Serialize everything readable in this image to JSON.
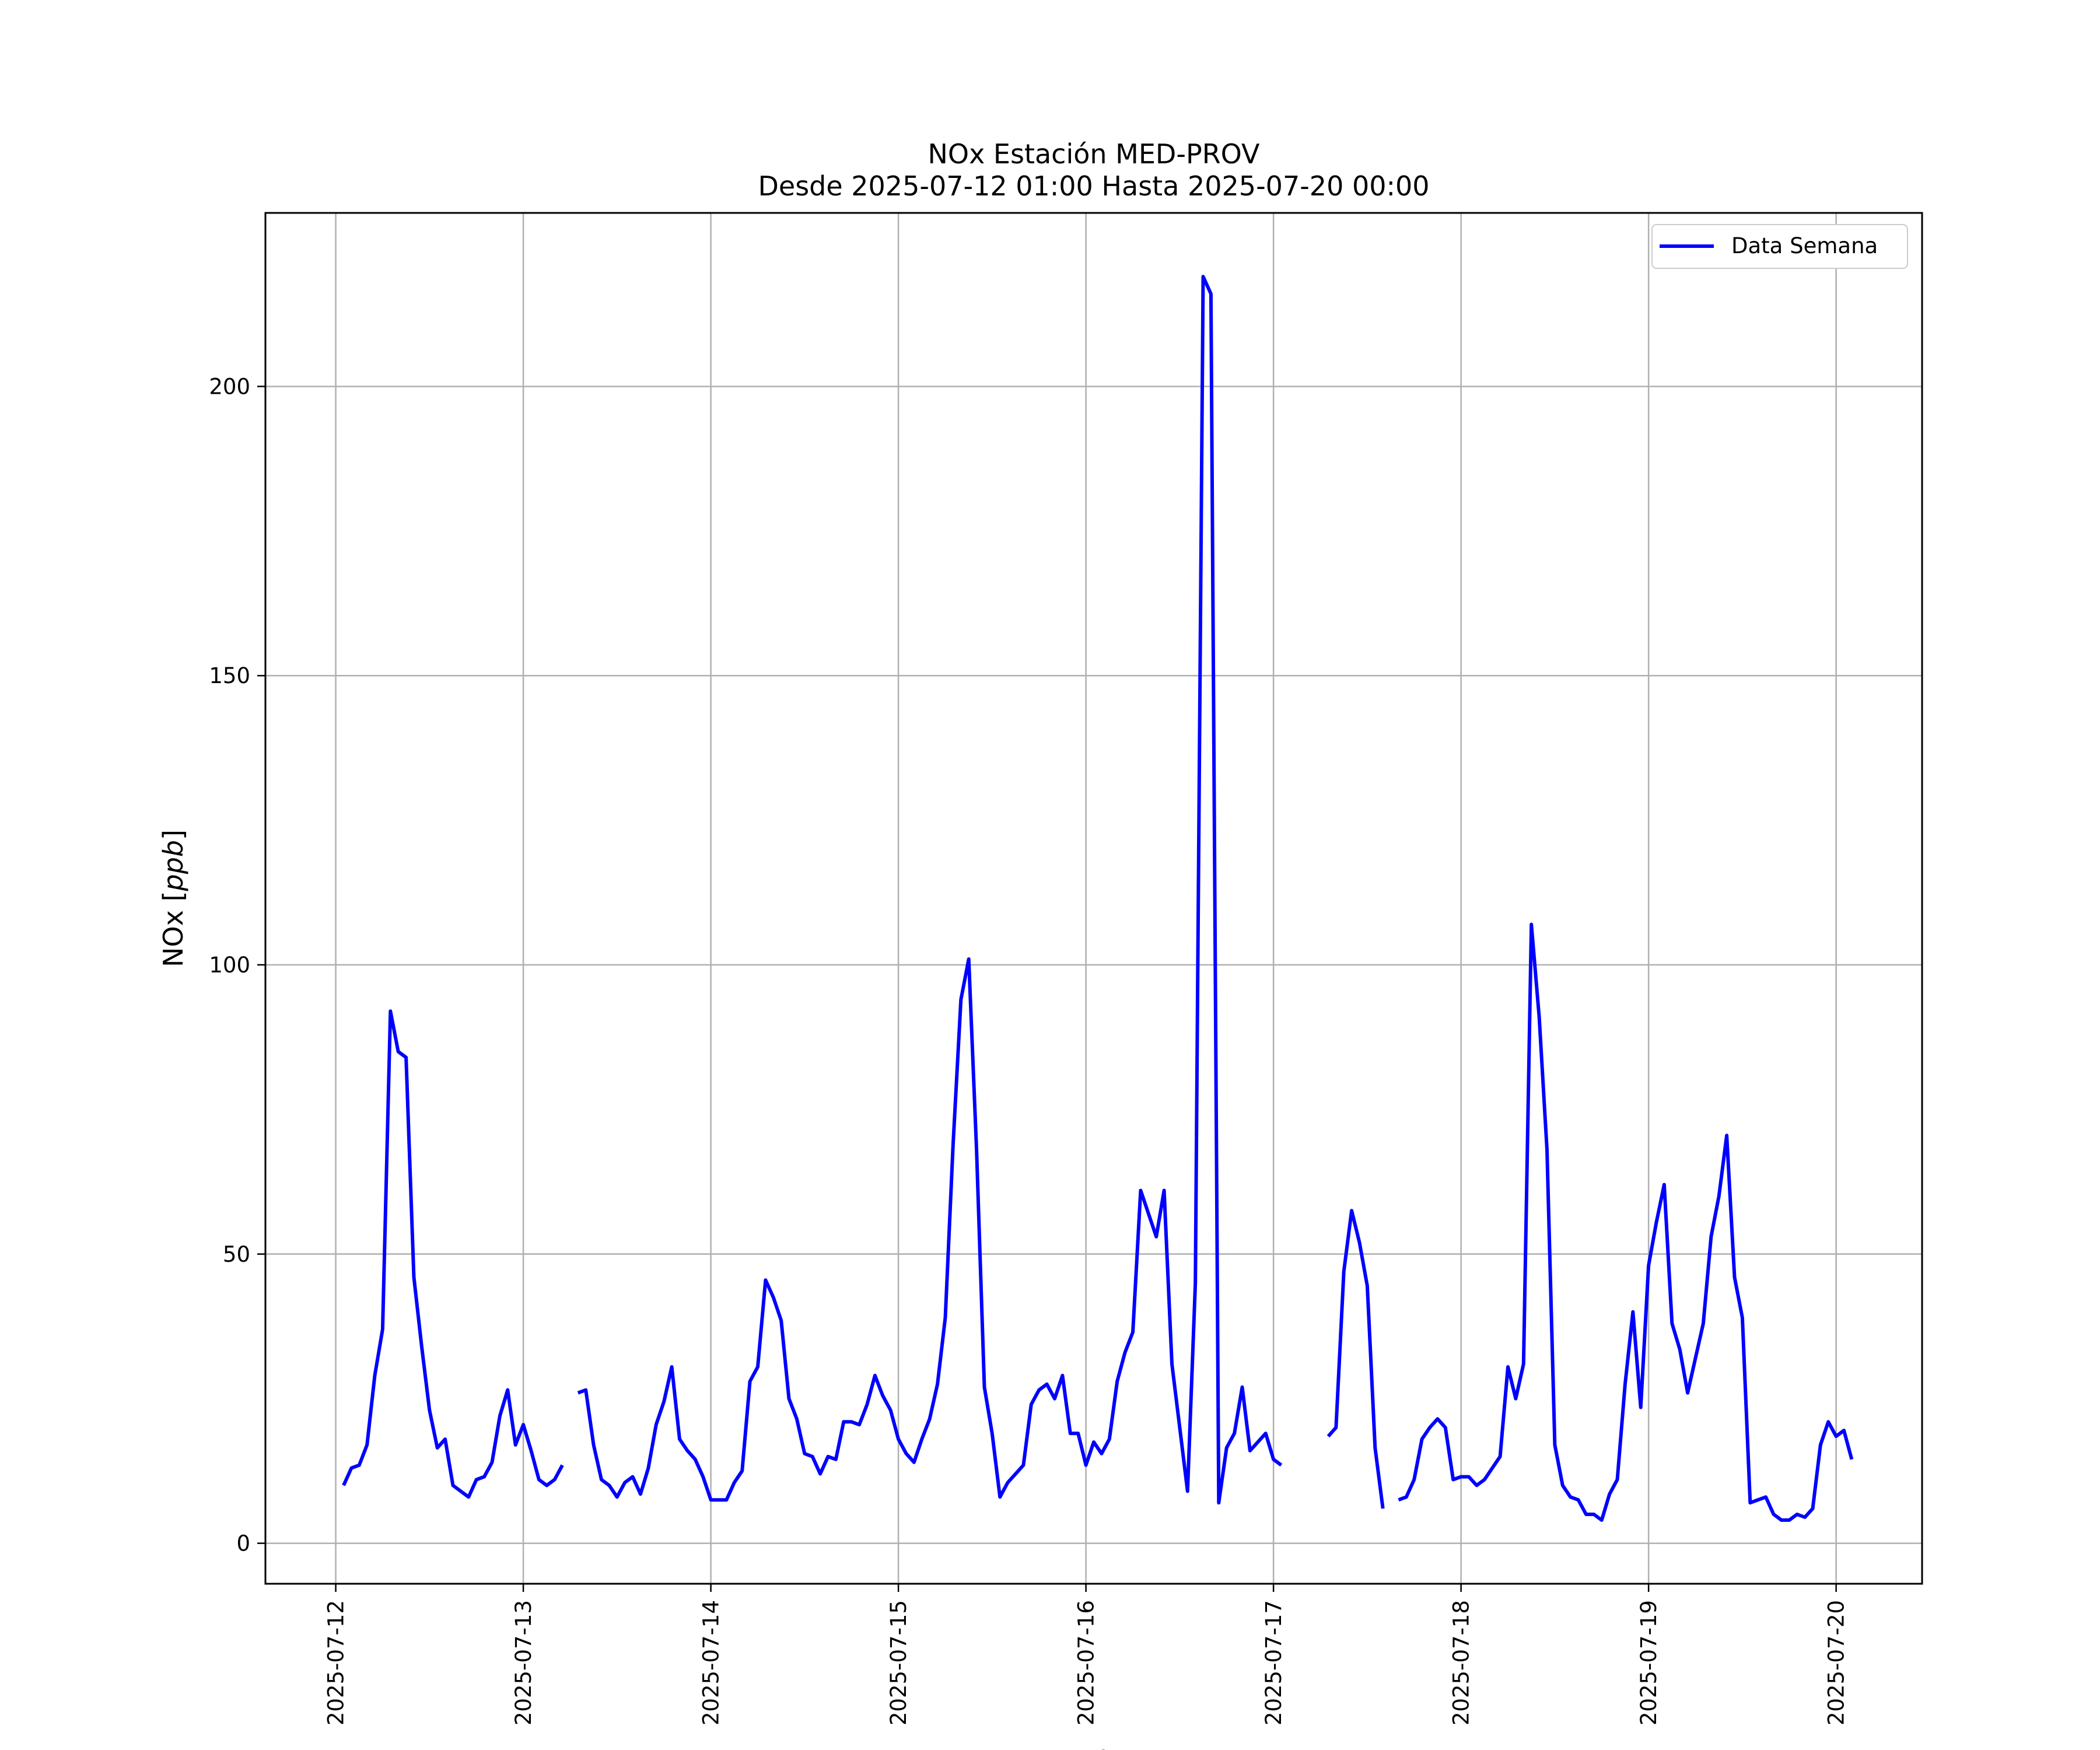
{
  "chart_data": {
    "type": "line",
    "title": "NOx Estación MED-PROV",
    "subtitle": "Desde 2025-07-12 01:00 Hasta 2025-07-20 00:00",
    "xlabel": "Fecha",
    "ylabel_prefix": "NOx [",
    "ylabel_unit": "ppb",
    "ylabel_suffix": "]",
    "xlim": [
      "2025-07-11 15:00",
      "2025-07-20 11:00"
    ],
    "ylim": [
      -7,
      230
    ],
    "x_ticks": [
      "2025-07-12",
      "2025-07-13",
      "2025-07-14",
      "2025-07-15",
      "2025-07-16",
      "2025-07-17",
      "2025-07-18",
      "2025-07-19",
      "2025-07-20"
    ],
    "y_ticks": [
      0,
      50,
      100,
      150,
      200
    ],
    "grid": true,
    "legend_position": "top-right",
    "colors": {
      "line": "#0000ff",
      "grid": "#b0b0b0",
      "axes": "#000000"
    },
    "series": [
      {
        "name": "Data Semana",
        "segments": [
          {
            "start": "2025-07-12 01:00",
            "values": [
              10.0,
              13.0,
              13.5,
              17.0,
              29.0,
              37.0,
              92.0,
              85.0,
              84.0,
              46.0,
              34.0,
              23.0,
              16.5,
              18.0,
              10.0,
              9.0,
              8.0,
              11.0,
              11.5,
              14.0,
              22.0,
              26.5,
              17.0,
              20.5,
              16.0,
              11.0,
              10.0,
              11.0,
              13.5
            ]
          },
          {
            "start": "2025-07-13 07:00",
            "values": [
              26.0,
              26.5,
              17.0,
              11.0,
              10.0,
              8.0,
              10.5,
              11.5,
              8.5,
              13.0,
              20.5,
              24.5,
              30.5,
              18.0,
              16.0,
              14.5,
              11.5,
              7.5,
              7.5,
              7.5,
              10.5,
              12.5,
              28.0,
              30.5,
              45.5,
              42.5,
              38.5,
              25.0,
              21.5,
              15.5,
              15.0,
              12.0,
              15.0,
              14.5,
              21.0,
              21.0,
              20.5,
              24.0,
              29.0,
              25.5,
              23.0,
              18.0,
              15.5,
              14.0,
              18.0,
              21.5,
              27.5,
              39.0,
              69.0,
              94.0,
              101.0,
              68.0,
              27.0,
              19.0,
              8.0,
              10.5,
              12.0,
              13.5,
              24.0,
              26.5,
              27.5,
              25.0,
              29.0,
              19.0,
              19.0,
              13.5,
              17.5,
              15.5,
              18.0,
              28.0,
              33.0,
              36.5,
              61.0,
              57.0,
              53.0,
              61.0,
              31.0,
              20.0,
              9.0,
              45.0,
              219.0,
              216.0,
              7.0,
              16.5,
              19.0,
              27.0,
              16.0,
              17.5,
              19.0,
              14.5,
              13.5
            ]
          },
          {
            "start": "2025-07-17 07:00",
            "values": [
              18.5,
              20.0,
              47.0,
              57.5,
              52.0,
              44.5,
              16.5,
              6.0
            ]
          },
          {
            "start": "2025-07-17 16:00",
            "values": [
              7.5,
              8.0,
              11.0,
              18.0,
              20.0,
              21.5,
              20.0,
              11.0,
              11.5,
              11.5,
              10.0,
              11.0,
              13.0,
              15.0,
              30.5,
              25.0,
              31.0,
              107.0,
              91.0,
              68.0,
              17.0,
              10.0,
              8.0,
              7.5,
              5.0,
              5.0,
              4.0,
              8.5,
              11.0,
              27.5,
              40.0,
              23.5,
              48.0,
              55.5,
              62.0,
              38.0,
              33.5,
              26.0,
              32.0,
              38.0,
              53.0,
              60.0,
              70.5,
              46.0,
              39.0,
              7.0,
              7.5,
              8.0,
              5.0,
              4.0,
              4.0,
              5.0,
              4.5,
              6.0,
              17.0,
              21.0,
              18.5,
              19.5,
              14.5
            ]
          }
        ]
      }
    ]
  }
}
